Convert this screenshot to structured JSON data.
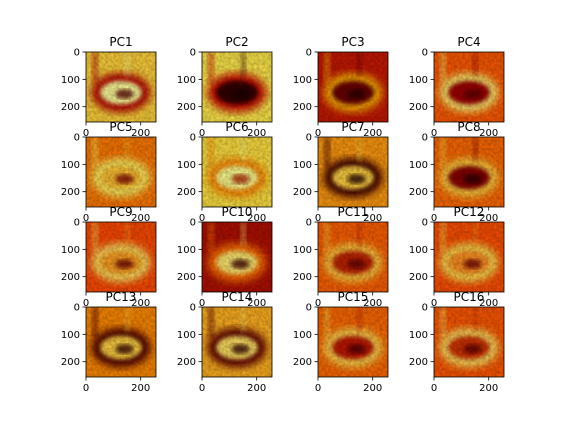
{
  "chart_data": {
    "type": "heatmap",
    "colormap": "hot",
    "grid": false,
    "panels": [
      {
        "title": "PC1"
      },
      {
        "title": "PC2"
      },
      {
        "title": "PC3"
      },
      {
        "title": "PC4"
      },
      {
        "title": "PC5"
      },
      {
        "title": "PC6"
      },
      {
        "title": "PC7"
      },
      {
        "title": "PC8"
      },
      {
        "title": "PC9"
      },
      {
        "title": "PC10"
      },
      {
        "title": "PC11"
      },
      {
        "title": "PC12"
      },
      {
        "title": "PC13"
      },
      {
        "title": "PC14"
      },
      {
        "title": "PC15"
      },
      {
        "title": "PC16"
      }
    ],
    "xlim": [
      0,
      256
    ],
    "ylim": [
      256,
      0
    ],
    "xticks": [
      0,
      200
    ],
    "yticks": [
      0,
      100,
      200
    ]
  }
}
